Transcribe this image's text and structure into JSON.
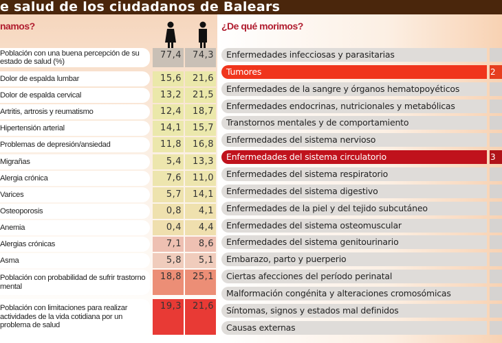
{
  "title": "e salud de los ciudadanos de Balears",
  "left": {
    "heading": "namos?",
    "columns": [
      {
        "icon": "woman-icon"
      },
      {
        "icon": "man-icon"
      }
    ],
    "rows": [
      {
        "label": "Población con una buena percepción de su estado de salud (%)",
        "women": "77,4",
        "men": "74,3"
      },
      {
        "label": "Dolor de espalda lumbar",
        "women": "15,6",
        "men": "21,6"
      },
      {
        "label": "Dolor de espalda cervical",
        "women": "13,2",
        "men": "21,5"
      },
      {
        "label": "Artritis, artrosis y reumatismo",
        "women": "12,4",
        "men": "18,7"
      },
      {
        "label": "Hipertensión arterial",
        "women": "14,1",
        "men": "15,7"
      },
      {
        "label": "Problemas de depresión/ansiedad",
        "women": "11,8",
        "men": "16,8"
      },
      {
        "label": "Migrañas",
        "women": "5,4",
        "men": "13,3"
      },
      {
        "label": "Alergia crónica",
        "women": "7,6",
        "men": "11,0"
      },
      {
        "label": "Varices",
        "women": "5,7",
        "men": "14,1"
      },
      {
        "label": "Osteoporosis",
        "women": "0,8",
        "men": "4,1"
      },
      {
        "label": "Anemia",
        "women": "0,4",
        "men": "4,4"
      },
      {
        "label": "Alergias crónicas",
        "women": "7,1",
        "men": "8,6"
      },
      {
        "label": "Asma",
        "women": "5,8",
        "men": "5,1"
      },
      {
        "label": "Población con probabilidad de sufrir trastorno mental",
        "women": "18,8",
        "men": "25,1"
      },
      {
        "label": "Población con limitaciones para realizar actividades de la vida cotidiana por un problema de salud",
        "women": "19,3",
        "men": "21,6"
      }
    ]
  },
  "right": {
    "heading": "¿De qué morimos?",
    "rows": [
      {
        "label": "Enfermedades infecciosas y parasitarias",
        "value": ""
      },
      {
        "label": "Tumores",
        "value": "2"
      },
      {
        "label": "Enfermedades de la sangre y órganos hematopoyéticos",
        "value": ""
      },
      {
        "label": "Enfermedades endocrinas, nutricionales y metabólicas",
        "value": ""
      },
      {
        "label": "Transtornos mentales y de comportamiento",
        "value": ""
      },
      {
        "label": "Enfermedades del sistema nervioso",
        "value": ""
      },
      {
        "label": "Enfermedades del sistema circulatorio",
        "value": "3"
      },
      {
        "label": "Enfermedades del sistema respiratorio",
        "value": ""
      },
      {
        "label": "Enfermedades del sistema digestivo",
        "value": ""
      },
      {
        "label": "Enfermedades de la piel y del tejido subcutáneo",
        "value": ""
      },
      {
        "label": "Enfermedades del sistema osteomuscular",
        "value": ""
      },
      {
        "label": "Enfermedades del sistema genitourinario",
        "value": ""
      },
      {
        "label": "Embarazo, parto y puerperio",
        "value": ""
      },
      {
        "label": "Ciertas afecciones del período perinatal",
        "value": ""
      },
      {
        "label": "Malformación congénita y alteraciones cromosómicas",
        "value": ""
      },
      {
        "label": "Síntomas, signos y estados mal definidos",
        "value": ""
      },
      {
        "label": "Causas externas",
        "value": ""
      }
    ]
  },
  "colors": {
    "title_bg": "#4a260c",
    "heading": "#b01c2e",
    "tumores": "#f0351c",
    "circulatorio": "#c0121c"
  }
}
